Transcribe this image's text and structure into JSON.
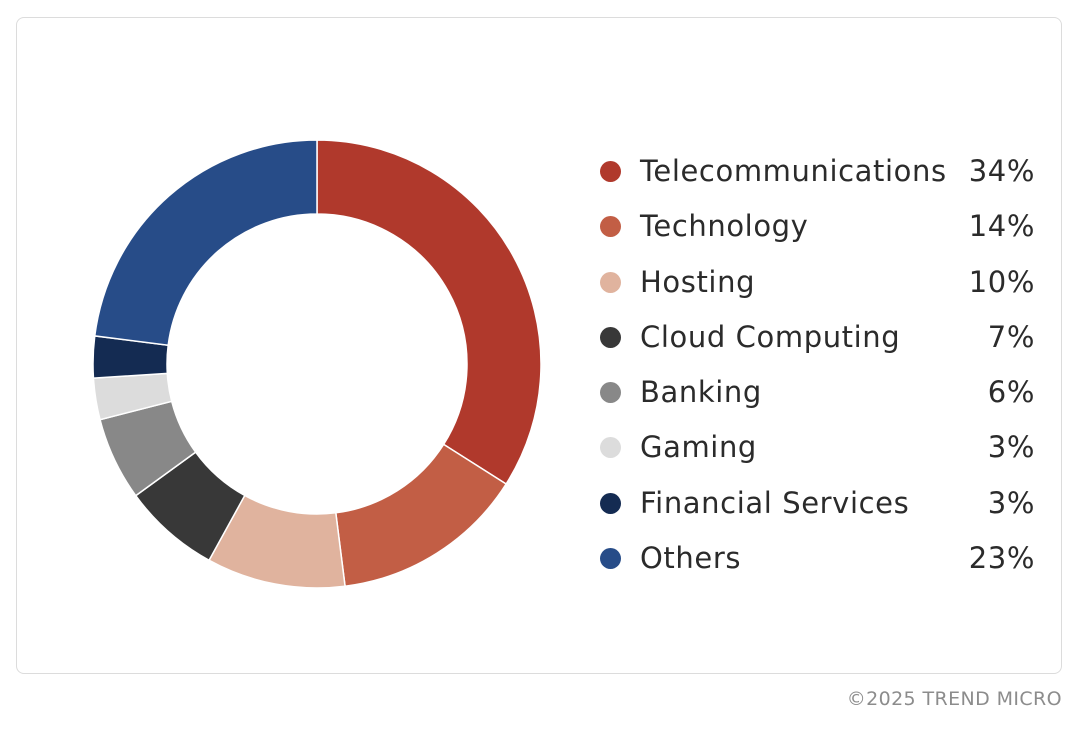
{
  "chart_data": {
    "type": "pie",
    "donut": true,
    "title": "",
    "categories": [
      "Telecommunications",
      "Technology",
      "Hosting",
      "Cloud Computing",
      "Banking",
      "Gaming",
      "Financial Services",
      "Others"
    ],
    "values": [
      34,
      14,
      10,
      7,
      6,
      3,
      3,
      23
    ],
    "value_labels": [
      "34%",
      "14%",
      "10%",
      "7%",
      "6%",
      "3%",
      "3%",
      "23%"
    ],
    "colors": [
      "#b0392c",
      "#c25e45",
      "#e0b39e",
      "#383838",
      "#888888",
      "#dcdcdc",
      "#142b52",
      "#274c88"
    ],
    "legend_position": "right"
  },
  "footer": {
    "copyright": "©2025 TREND MICRO"
  }
}
